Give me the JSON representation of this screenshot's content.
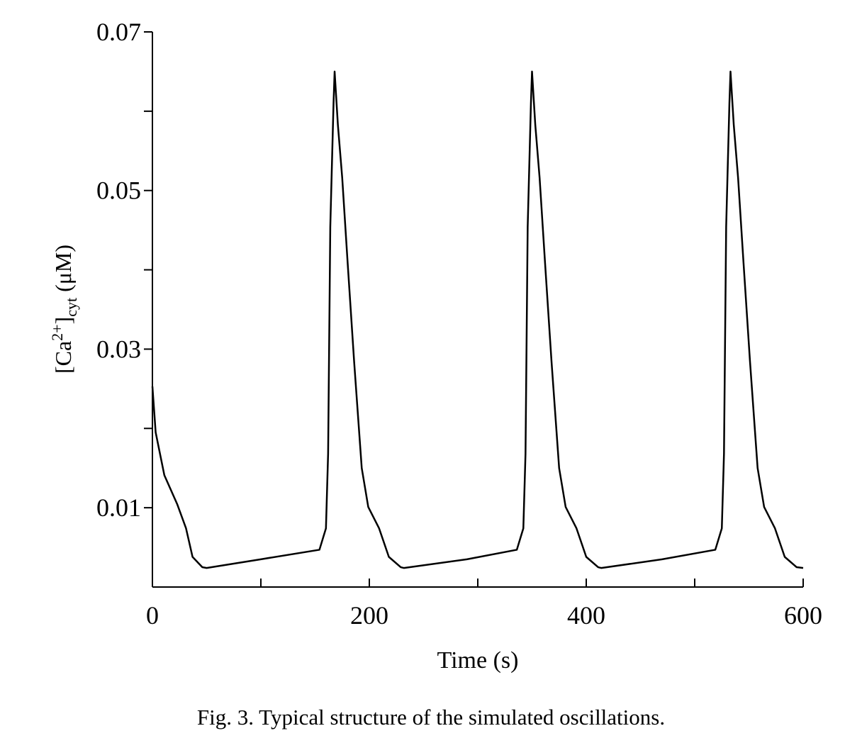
{
  "chart_data": {
    "type": "line",
    "x_label": "Time (s)",
    "y_label_parts": [
      "[Ca",
      "2+",
      "]",
      "cyt",
      " (μM)"
    ],
    "caption": "Fig. 3.  Typical structure of the simulated oscillations.",
    "xlim": [
      0,
      600
    ],
    "ylim": [
      0,
      0.07
    ],
    "xticks": [
      0,
      200,
      400,
      600
    ],
    "yticks": [
      0.01,
      0.03,
      0.05,
      0.07
    ],
    "minor_xticks": [
      100,
      300,
      500
    ],
    "minor_yticks": [
      0.02,
      0.04,
      0.06
    ],
    "color": "#000000",
    "x": [
      0,
      3,
      11,
      23,
      31,
      37,
      46,
      50,
      100,
      154,
      160,
      162,
      164,
      167,
      168,
      171,
      175,
      180,
      186,
      193,
      199,
      209,
      218,
      229,
      232,
      290,
      336,
      342,
      344,
      346,
      349,
      350,
      353,
      357,
      362,
      368,
      375,
      381,
      391,
      400,
      411,
      414,
      470,
      519,
      525,
      527,
      529,
      532,
      533,
      536,
      540,
      545,
      551,
      558,
      564,
      574,
      583,
      594,
      600
    ],
    "values": [
      0.0253,
      0.0195,
      0.0141,
      0.0104,
      0.0074,
      0.0038,
      0.0025,
      0.0024,
      0.0035,
      0.0047,
      0.0074,
      0.0168,
      0.0454,
      0.061,
      0.065,
      0.0583,
      0.0516,
      0.0409,
      0.0284,
      0.015,
      0.0101,
      0.0074,
      0.0038,
      0.0025,
      0.0024,
      0.0035,
      0.0047,
      0.0074,
      0.0168,
      0.0454,
      0.061,
      0.065,
      0.0583,
      0.0516,
      0.0409,
      0.0284,
      0.015,
      0.0101,
      0.0074,
      0.0038,
      0.0025,
      0.0024,
      0.0035,
      0.0047,
      0.0074,
      0.0168,
      0.0454,
      0.061,
      0.065,
      0.0583,
      0.0516,
      0.0409,
      0.0284,
      0.015,
      0.0101,
      0.0074,
      0.0038,
      0.0025,
      0.0024
    ]
  }
}
